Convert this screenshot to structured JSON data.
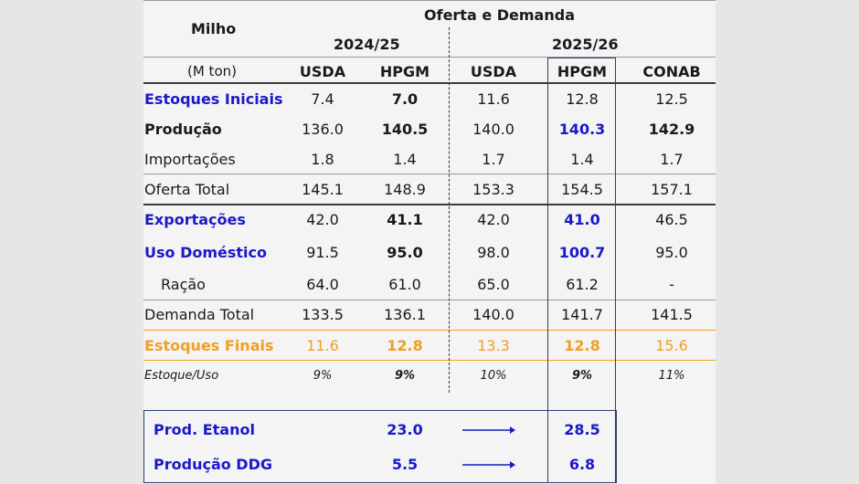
{
  "header": {
    "commodity": "Milho",
    "section": "Oferta e Demanda",
    "season1": "2024/25",
    "season2": "2025/26",
    "unit": "(M ton)"
  },
  "columns": [
    "USDA",
    "HPGM",
    "USDA",
    "HPGM",
    "CONAB"
  ],
  "rows": [
    {
      "label": "Estoques Iniciais",
      "values": [
        "7.4",
        "7.0",
        "11.6",
        "12.8",
        "12.5"
      ]
    },
    {
      "label": "Produção",
      "values": [
        "136.0",
        "140.5",
        "140.0",
        "140.3",
        "142.9"
      ]
    },
    {
      "label": "Importações",
      "values": [
        "1.8",
        "1.4",
        "1.7",
        "1.4",
        "1.7"
      ]
    },
    {
      "label": "Oferta Total",
      "values": [
        "145.1",
        "148.9",
        "153.3",
        "154.5",
        "157.1"
      ]
    },
    {
      "label": "Exportações",
      "values": [
        "42.0",
        "41.1",
        "42.0",
        "41.0",
        "46.5"
      ]
    },
    {
      "label": "Uso Doméstico",
      "values": [
        "91.5",
        "95.0",
        "98.0",
        "100.7",
        "95.0"
      ]
    },
    {
      "label": "Ração",
      "values": [
        "64.0",
        "61.0",
        "65.0",
        "61.2",
        "-"
      ]
    },
    {
      "label": "Demanda Total",
      "values": [
        "133.5",
        "136.1",
        "140.0",
        "141.7",
        "141.5"
      ]
    },
    {
      "label": "Estoques Finais",
      "values": [
        "11.6",
        "12.8",
        "13.3",
        "12.8",
        "15.6"
      ]
    },
    {
      "label": "Estoque/Uso",
      "values": [
        "9%",
        "9%",
        "10%",
        "9%",
        "11%"
      ]
    }
  ],
  "extra": [
    {
      "label": "Prod. Etanol",
      "value_2024": "23.0",
      "value_2025": "28.5"
    },
    {
      "label": "Produção DDG",
      "value_2024": "5.5",
      "value_2025": "6.8"
    }
  ],
  "colors": {
    "blue": "#1a1ac8",
    "orange": "#f0a020",
    "box_border": "#2c3e6b",
    "panel": "#f4f4f4",
    "background": "#e6e6e6"
  }
}
